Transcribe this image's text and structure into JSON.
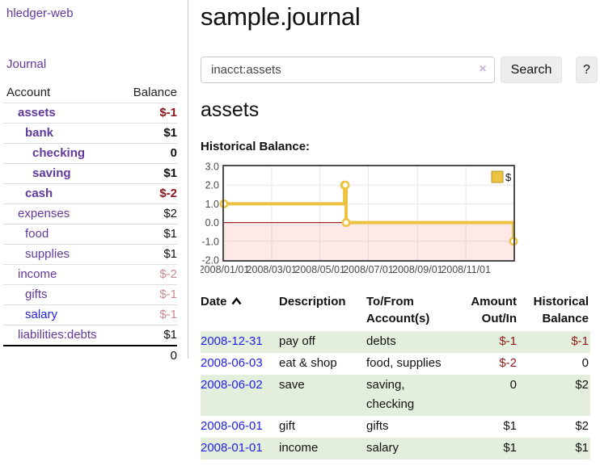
{
  "app": {
    "title": "hledger-web"
  },
  "nav": {
    "journal": "Journal"
  },
  "sidebar": {
    "header": {
      "account": "Account",
      "balance": "Balance"
    },
    "accounts": [
      {
        "name": "assets",
        "indent": 1,
        "bold": true,
        "balance": "$-1",
        "balance_style": "negative"
      },
      {
        "name": "bank",
        "indent": 2,
        "bold": true,
        "balance": "$1",
        "balance_style": "normal"
      },
      {
        "name": "checking",
        "indent": 3,
        "bold": true,
        "balance": "0",
        "balance_style": "normal"
      },
      {
        "name": "saving",
        "indent": 3,
        "bold": true,
        "balance": "$1",
        "balance_style": "normal"
      },
      {
        "name": "cash",
        "indent": 2,
        "bold": true,
        "balance": "$-2",
        "balance_style": "negative"
      },
      {
        "name": "expenses",
        "indent": 1,
        "bold": false,
        "balance": "$2",
        "balance_style": "normal"
      },
      {
        "name": "food",
        "indent": 2,
        "bold": false,
        "balance": "$1",
        "balance_style": "normal"
      },
      {
        "name": "supplies",
        "indent": 2,
        "bold": false,
        "balance": "$1",
        "balance_style": "normal"
      },
      {
        "name": "income",
        "indent": 1,
        "bold": false,
        "balance": "$-2",
        "balance_style": "negative-dim"
      },
      {
        "name": "gifts",
        "indent": 2,
        "bold": false,
        "balance": "$-1",
        "balance_style": "negative-dim"
      },
      {
        "name": "salary",
        "indent": 2,
        "bold": false,
        "balance": "$-1",
        "balance_style": "negative-dim",
        "link_color": "blue"
      },
      {
        "name": "liabilities:debts",
        "indent": 1,
        "bold": false,
        "balance": "$1",
        "balance_style": "normal"
      }
    ],
    "total": "0"
  },
  "main": {
    "title": "sample.journal",
    "search": {
      "value": "inacct:assets",
      "clear_icon": "×",
      "button_label": "Search",
      "help_label": "?"
    },
    "account_heading": "assets",
    "chart_label": "Historical Balance:"
  },
  "chart_data": {
    "type": "line",
    "title": "Historical Balance",
    "step": true,
    "xrange": [
      "2008-01-01",
      "2008-12-31"
    ],
    "ylim": [
      -2,
      3
    ],
    "yticks": [
      {
        "value": 3,
        "label": "3.0"
      },
      {
        "value": 2,
        "label": "2.0"
      },
      {
        "value": 1,
        "label": "1.0"
      },
      {
        "value": 0,
        "label": "0.0"
      },
      {
        "value": -1,
        "label": "-1.0"
      },
      {
        "value": -2,
        "label": "-2.0"
      }
    ],
    "xticks": [
      {
        "date": "2008-01-01",
        "label": "2008/01/01"
      },
      {
        "date": "2008-03-01",
        "label": "2008/03/01"
      },
      {
        "date": "2008-05-01",
        "label": "2008/05/01"
      },
      {
        "date": "2008-07-01",
        "label": "2008/07/01"
      },
      {
        "date": "2008-09-01",
        "label": "2008/09/01"
      },
      {
        "date": "2008-11-01",
        "label": "2008/11/01"
      }
    ],
    "series": [
      {
        "name": "$",
        "color": "#edc240",
        "points": [
          [
            "2008-01-01",
            1
          ],
          [
            "2008-06-01",
            2
          ],
          [
            "2008-06-02",
            2
          ],
          [
            "2008-06-03",
            0
          ],
          [
            "2008-12-31",
            -1
          ]
        ]
      }
    ],
    "legend_position": "top-right",
    "grid": true,
    "grid_color": "#e8e8e8",
    "negative_fill": "rgba(255,0,0,0.09)",
    "zero_line_color": "#8b0000",
    "plot_border_color": "#4d4d4d",
    "tick_label_color": "#4a4a4a"
  },
  "register": {
    "headers": [
      {
        "line1": "Date",
        "line2": "",
        "sortable": true
      },
      {
        "line1": "Description",
        "line2": ""
      },
      {
        "line1": "To/From",
        "line2": "Account(s)"
      },
      {
        "line1": "Amount",
        "line2": "Out/In",
        "align": "right"
      },
      {
        "line1": "Historical",
        "line2": "Balance",
        "align": "right"
      }
    ],
    "rows": [
      {
        "date": "2008-12-31",
        "description": "pay off",
        "accounts": "debts",
        "amount": "$-1",
        "amount_negative": true,
        "balance": "$-1",
        "balance_negative": true
      },
      {
        "date": "2008-06-03",
        "description": "eat & shop",
        "accounts": "food, supplies",
        "amount": "$-2",
        "amount_negative": true,
        "balance": "0",
        "balance_negative": false
      },
      {
        "date": "2008-06-02",
        "description": "save",
        "accounts": "saving, checking",
        "amount": "0",
        "amount_negative": false,
        "balance": "$2",
        "balance_negative": false
      },
      {
        "date": "2008-06-01",
        "description": "gift",
        "accounts": "gifts",
        "amount": "$1",
        "amount_negative": false,
        "balance": "$2",
        "balance_negative": false
      },
      {
        "date": "2008-01-01",
        "description": "income",
        "accounts": "salary",
        "amount": "$1",
        "amount_negative": false,
        "balance": "$1",
        "balance_negative": false
      }
    ]
  },
  "colors": {
    "link_purple": "#61399b",
    "link_blue": "#2121e6",
    "negative": "#8b141c",
    "negative_dim": "#c98a8a",
    "row_stripe_green": "#e3efdc",
    "chart_line_gold": "#edc240"
  }
}
